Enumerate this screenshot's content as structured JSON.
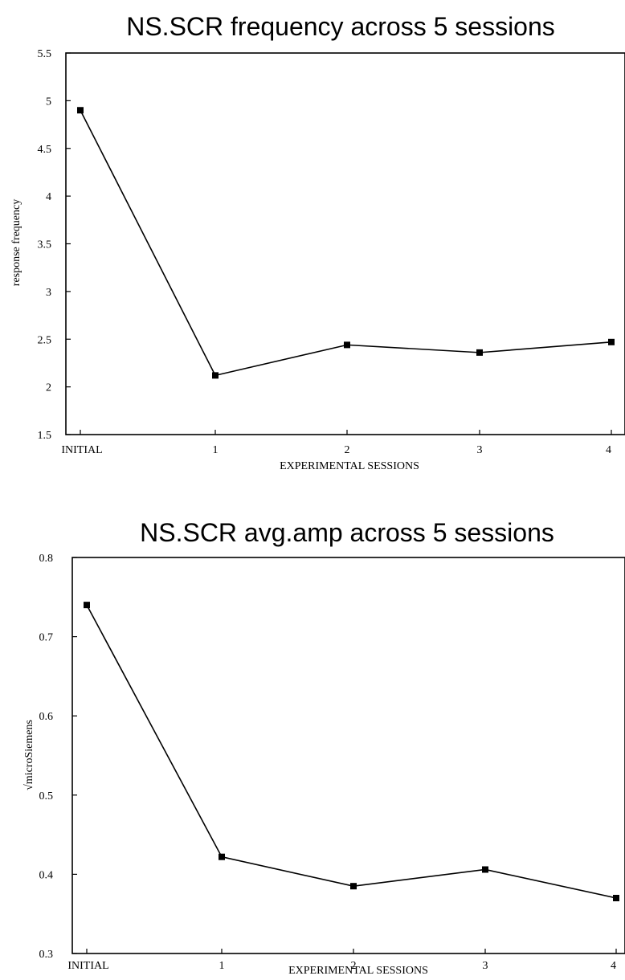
{
  "chart_data": [
    {
      "type": "line",
      "title": "NS.SCR frequency across 5 sessions",
      "xlabel": "EXPERIMENTAL SESSIONS",
      "ylabel": "response frequency",
      "categories": [
        "INITIAL",
        "1",
        "2",
        "3",
        "4"
      ],
      "series": [
        {
          "values": [
            4.9,
            2.12,
            2.44,
            2.36,
            2.47
          ]
        }
      ],
      "ylim": [
        1.5,
        5.5
      ],
      "yticks": [
        "1.5",
        "2",
        "2.5",
        "3",
        "3.5",
        "4",
        "4.5",
        "5",
        "5.5"
      ],
      "grid": false,
      "marker": "square"
    },
    {
      "type": "line",
      "title": "NS.SCR avg.amp across 5 sessions",
      "xlabel": "EXPERIMENTAL SESSIONS",
      "ylabel": "√microSiemens",
      "categories": [
        "INITIAL",
        "1",
        "2",
        "3",
        "4"
      ],
      "series": [
        {
          "values": [
            0.74,
            0.422,
            0.385,
            0.406,
            0.37
          ]
        }
      ],
      "ylim": [
        0.3,
        0.8
      ],
      "yticks": [
        "0.3",
        "0.4",
        "0.5",
        "0.6",
        "0.7",
        "0.8"
      ],
      "grid": false,
      "marker": "square"
    }
  ]
}
